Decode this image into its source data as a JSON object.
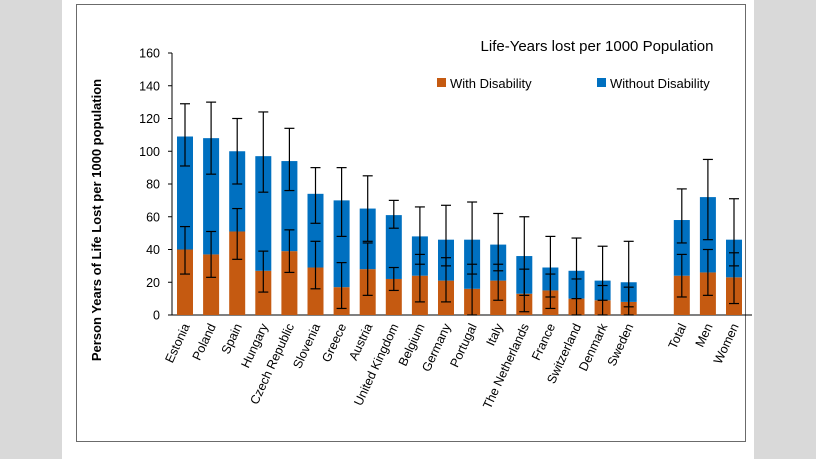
{
  "chart_data": {
    "type": "bar",
    "stacked": true,
    "title": "Life-Years lost per 1000 Population",
    "ylabel": "Person Years of Life Lost per 1000 population",
    "xlabel": "",
    "ylim": [
      0,
      160
    ],
    "yticks": [
      0,
      20,
      40,
      60,
      80,
      100,
      120,
      140,
      160
    ],
    "legend_position": "top-right",
    "grid": false,
    "categories": [
      "Estonia",
      "Poland",
      "Spain",
      "Hungary",
      "Czech Republic",
      "Slovenia",
      "Greece",
      "Austria",
      "United Kingdom",
      "Belgium",
      "Germany",
      "Portugal",
      "Italy",
      "The Netherlands",
      "France",
      "Switzerland",
      "Denmark",
      "Sweden",
      "Total",
      "Men",
      "Women"
    ],
    "group_gap_after": "Sweden",
    "series": [
      {
        "name": "With Disability",
        "color": "#c55a11",
        "values": [
          40,
          37,
          51,
          27,
          39,
          29,
          17,
          28,
          22,
          24,
          21,
          16,
          21,
          13,
          15,
          10,
          9,
          8,
          24,
          26,
          23
        ],
        "error_low": [
          25,
          23,
          34,
          14,
          26,
          16,
          4,
          12,
          15,
          8,
          8,
          0,
          9,
          2,
          4,
          0,
          0,
          0,
          11,
          12,
          7
        ],
        "error_high": [
          54,
          51,
          65,
          39,
          52,
          45,
          32,
          44,
          29,
          37,
          35,
          31,
          31,
          28,
          25,
          22,
          18,
          17,
          37,
          40,
          38
        ]
      },
      {
        "name": "Without Disability",
        "color": "#0070c0",
        "values": [
          69,
          71,
          49,
          70,
          55,
          45,
          53,
          37,
          39,
          24,
          25,
          30,
          22,
          23,
          14,
          17,
          12,
          12,
          34,
          46,
          23
        ],
        "error_low": [
          91,
          86,
          80,
          75,
          76,
          56,
          48,
          45,
          53,
          31,
          30,
          25,
          27,
          12,
          11,
          10,
          9,
          5,
          44,
          46,
          30
        ],
        "error_high": [
          129,
          130,
          120,
          124,
          114,
          90,
          90,
          85,
          70,
          66,
          67,
          69,
          62,
          60,
          48,
          47,
          42,
          45,
          77,
          95,
          71
        ]
      }
    ]
  }
}
